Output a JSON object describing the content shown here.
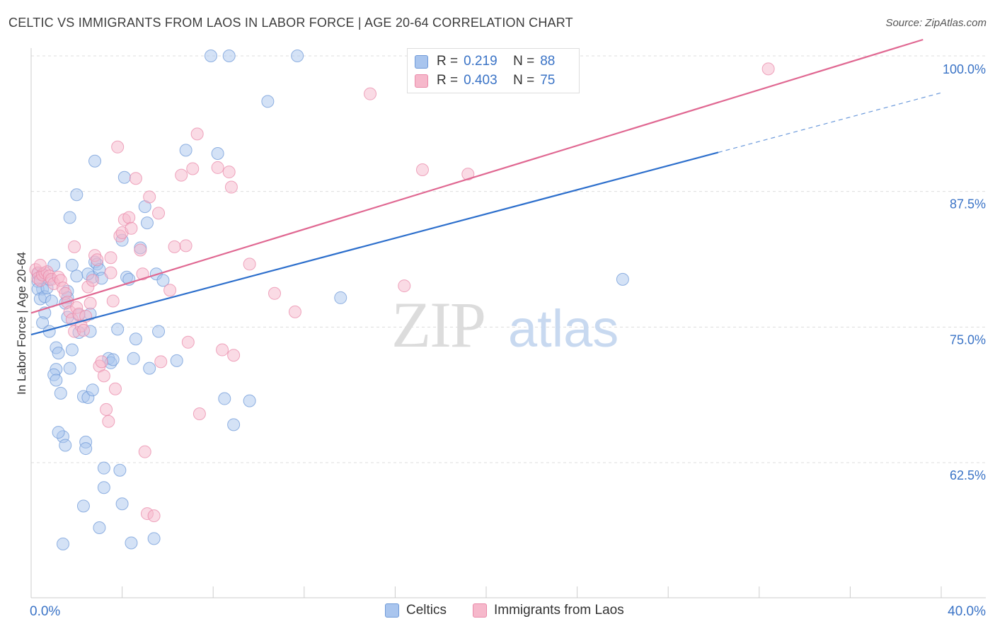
{
  "title": "CELTIC VS IMMIGRANTS FROM LAOS IN LABOR FORCE | AGE 20-64 CORRELATION CHART",
  "source": "Source: ZipAtlas.com",
  "watermark": {
    "zip": "ZIP",
    "atlas": "atlas"
  },
  "legend": {
    "r_label": "R =",
    "n_label": "N =",
    "celtic": {
      "r": "0.219",
      "n": "88"
    },
    "laos": {
      "r": "0.403",
      "n": "75"
    }
  },
  "bottom_legend": {
    "celtic": "Celtics",
    "laos": "Immigrants from Laos"
  },
  "colors": {
    "celtic_fill": "#a9c5ee",
    "celtic_stroke": "#6f9ad8",
    "celtic_line": "#2d6fcc",
    "laos_fill": "#f6b8cb",
    "laos_stroke": "#e98aa9",
    "laos_line": "#e06892",
    "axis_text": "#3a73c6",
    "grid": "#dddddd"
  },
  "chart_data": {
    "type": "scatter",
    "title": "CELTIC VS IMMIGRANTS FROM LAOS IN LABOR FORCE | AGE 20-64 CORRELATION CHART",
    "xlabel": "",
    "ylabel": "In Labor Force | Age 20-64",
    "xlim": [
      0,
      40
    ],
    "ylim": [
      50,
      101.5
    ],
    "x_tick_labels": [
      "0.0%",
      "40.0%"
    ],
    "y_ticks": [
      62.5,
      75.0,
      87.5,
      100.0
    ],
    "y_tick_labels": [
      "62.5%",
      "75.0%",
      "87.5%",
      "100.0%"
    ],
    "series": [
      {
        "name": "Celtics",
        "r": 0.219,
        "n": 88,
        "trend": {
          "x0": 0,
          "y0": 74.3,
          "x1": 30.2,
          "y1": 91.1,
          "dash_to_x": 40,
          "dash_to_y": 96.6
        },
        "points": [
          [
            0.3,
            79.9
          ],
          [
            0.4,
            79.6
          ],
          [
            0.3,
            79.2
          ],
          [
            0.5,
            78.5
          ],
          [
            0.3,
            78.5
          ],
          [
            0.4,
            77.6
          ],
          [
            0.6,
            76.3
          ],
          [
            0.5,
            75.4
          ],
          [
            0.8,
            74.6
          ],
          [
            0.6,
            77.8
          ],
          [
            0.7,
            78.6
          ],
          [
            0.9,
            77.4
          ],
          [
            1.0,
            80.7
          ],
          [
            1.1,
            73.1
          ],
          [
            1.2,
            72.6
          ],
          [
            1.1,
            71.1
          ],
          [
            1.0,
            70.6
          ],
          [
            1.1,
            70.1
          ],
          [
            1.7,
            71.2
          ],
          [
            1.3,
            68.9
          ],
          [
            1.4,
            64.9
          ],
          [
            1.5,
            64.1
          ],
          [
            1.6,
            78.3
          ],
          [
            1.6,
            77.7
          ],
          [
            1.5,
            77.2
          ],
          [
            1.6,
            75.9
          ],
          [
            1.8,
            72.9
          ],
          [
            1.8,
            80.7
          ],
          [
            2.0,
            79.7
          ],
          [
            2.1,
            76.1
          ],
          [
            2.1,
            74.5
          ],
          [
            2.3,
            68.6
          ],
          [
            2.4,
            64.4
          ],
          [
            2.4,
            63.8
          ],
          [
            2.5,
            68.5
          ],
          [
            2.6,
            76.2
          ],
          [
            2.6,
            74.6
          ],
          [
            2.7,
            69.2
          ],
          [
            2.7,
            79.6
          ],
          [
            2.8,
            81.0
          ],
          [
            2.9,
            80.8
          ],
          [
            3.0,
            80.3
          ],
          [
            3.1,
            79.5
          ],
          [
            3.2,
            62.0
          ],
          [
            3.4,
            72.1
          ],
          [
            3.5,
            71.7
          ],
          [
            3.6,
            72.0
          ],
          [
            3.8,
            74.8
          ],
          [
            3.9,
            61.8
          ],
          [
            4.0,
            83.0
          ],
          [
            4.1,
            88.8
          ],
          [
            4.2,
            79.6
          ],
          [
            4.3,
            79.4
          ],
          [
            4.4,
            55.1
          ],
          [
            4.5,
            72.1
          ],
          [
            4.6,
            73.9
          ],
          [
            4.8,
            82.3
          ],
          [
            5.0,
            86.1
          ],
          [
            5.1,
            84.6
          ],
          [
            5.2,
            71.2
          ],
          [
            5.4,
            55.5
          ],
          [
            5.5,
            79.9
          ],
          [
            5.6,
            74.6
          ],
          [
            5.8,
            79.3
          ],
          [
            6.4,
            71.9
          ],
          [
            6.8,
            91.3
          ],
          [
            7.9,
            100.0
          ],
          [
            8.2,
            91.0
          ],
          [
            8.5,
            68.4
          ],
          [
            8.9,
            66.0
          ],
          [
            8.7,
            100.0
          ],
          [
            9.6,
            68.2
          ],
          [
            10.4,
            95.8
          ],
          [
            11.7,
            100.0
          ],
          [
            13.6,
            77.7
          ],
          [
            26.0,
            79.4
          ],
          [
            1.4,
            55.0
          ],
          [
            2.3,
            58.5
          ],
          [
            2.8,
            90.3
          ],
          [
            1.7,
            85.1
          ],
          [
            2.0,
            87.2
          ],
          [
            3.0,
            56.5
          ],
          [
            3.2,
            60.2
          ],
          [
            4.0,
            58.7
          ],
          [
            2.5,
            79.9
          ],
          [
            0.5,
            79.9
          ],
          [
            0.8,
            79.4
          ],
          [
            1.2,
            65.3
          ]
        ]
      },
      {
        "name": "Immigrants from Laos",
        "r": 0.403,
        "n": 75,
        "trend": {
          "x0": 0,
          "y0": 76.3,
          "x1": 39.2,
          "y1": 101.5
        },
        "points": [
          [
            0.2,
            80.3
          ],
          [
            0.3,
            80.0
          ],
          [
            0.3,
            79.5
          ],
          [
            0.4,
            79.3
          ],
          [
            0.5,
            79.8
          ],
          [
            0.6,
            80.0
          ],
          [
            0.7,
            80.1
          ],
          [
            0.8,
            79.7
          ],
          [
            0.9,
            79.4
          ],
          [
            1.0,
            79.0
          ],
          [
            1.2,
            79.6
          ],
          [
            1.3,
            79.3
          ],
          [
            1.4,
            78.6
          ],
          [
            1.5,
            78.1
          ],
          [
            1.6,
            77.3
          ],
          [
            1.7,
            76.4
          ],
          [
            1.8,
            75.7
          ],
          [
            1.9,
            74.6
          ],
          [
            2.0,
            76.8
          ],
          [
            2.1,
            76.2
          ],
          [
            2.2,
            75.1
          ],
          [
            2.3,
            74.7
          ],
          [
            2.4,
            76.0
          ],
          [
            2.5,
            78.7
          ],
          [
            2.6,
            77.2
          ],
          [
            2.7,
            79.3
          ],
          [
            2.8,
            81.6
          ],
          [
            2.9,
            81.2
          ],
          [
            3.0,
            71.4
          ],
          [
            3.1,
            71.8
          ],
          [
            3.2,
            70.5
          ],
          [
            3.3,
            67.4
          ],
          [
            3.4,
            66.3
          ],
          [
            3.5,
            81.4
          ],
          [
            3.6,
            77.4
          ],
          [
            3.7,
            69.3
          ],
          [
            3.8,
            91.6
          ],
          [
            3.9,
            83.4
          ],
          [
            4.0,
            83.7
          ],
          [
            4.1,
            84.9
          ],
          [
            4.3,
            85.1
          ],
          [
            4.4,
            84.1
          ],
          [
            4.6,
            88.7
          ],
          [
            4.8,
            82.1
          ],
          [
            4.9,
            79.9
          ],
          [
            5.0,
            63.5
          ],
          [
            5.1,
            57.8
          ],
          [
            5.2,
            87.0
          ],
          [
            5.4,
            57.6
          ],
          [
            5.6,
            85.5
          ],
          [
            5.7,
            71.8
          ],
          [
            6.1,
            78.4
          ],
          [
            6.3,
            82.4
          ],
          [
            6.6,
            89.0
          ],
          [
            6.8,
            82.5
          ],
          [
            6.9,
            73.6
          ],
          [
            7.1,
            89.6
          ],
          [
            7.3,
            92.8
          ],
          [
            7.4,
            67.0
          ],
          [
            8.2,
            89.7
          ],
          [
            8.4,
            72.9
          ],
          [
            8.7,
            89.3
          ],
          [
            8.8,
            87.9
          ],
          [
            8.9,
            72.4
          ],
          [
            9.6,
            80.8
          ],
          [
            10.7,
            78.1
          ],
          [
            11.6,
            76.4
          ],
          [
            14.9,
            96.5
          ],
          [
            16.4,
            78.8
          ],
          [
            17.2,
            89.5
          ],
          [
            19.2,
            89.1
          ],
          [
            32.4,
            98.8
          ],
          [
            1.9,
            82.4
          ],
          [
            0.4,
            80.7
          ],
          [
            3.5,
            80.0
          ]
        ]
      }
    ]
  }
}
